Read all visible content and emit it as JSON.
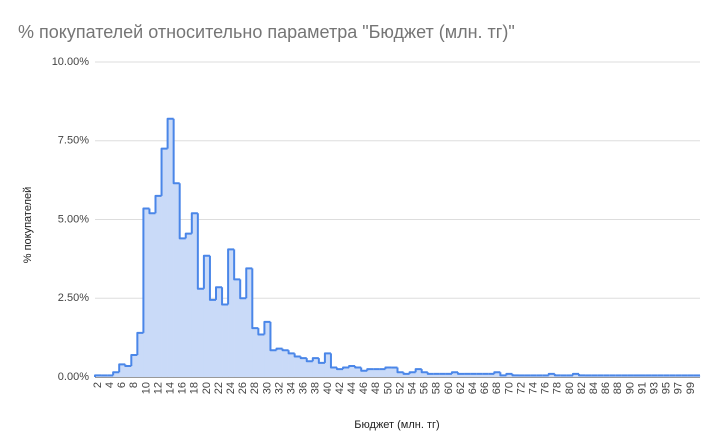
{
  "chart_data": {
    "type": "stepped-area",
    "title": "% покупателей относительно параметра \"Бюджет (млн. тг)\"",
    "x_label": "Бюджет (млн. тг)",
    "y_label": "% покупателей",
    "categories": [
      "2",
      null,
      "4",
      null,
      "6",
      null,
      "8",
      null,
      "10",
      null,
      "12",
      null,
      "14",
      null,
      "16",
      null,
      "18",
      null,
      "20",
      null,
      "22",
      null,
      "24",
      null,
      "26",
      null,
      "28",
      null,
      "30",
      null,
      "32",
      null,
      "34",
      null,
      "36",
      null,
      "38",
      null,
      "40",
      null,
      "42",
      null,
      "44",
      null,
      "46",
      null,
      "48",
      null,
      "50",
      null,
      "52",
      null,
      "54",
      null,
      "56",
      null,
      "58",
      null,
      "60",
      null,
      "62",
      null,
      "64",
      null,
      "66",
      null,
      "68",
      null,
      "70",
      null,
      "72",
      null,
      "74",
      null,
      "76",
      null,
      "78",
      null,
      "80",
      null,
      "82",
      null,
      "84",
      null,
      "86",
      null,
      "88",
      null,
      "90",
      null,
      "91",
      null,
      "93",
      null,
      "95",
      null,
      "97",
      null,
      "99",
      null
    ],
    "values": [
      0.05,
      0.05,
      0.05,
      0.15,
      0.4,
      0.35,
      0.7,
      1.4,
      5.35,
      5.2,
      5.75,
      7.25,
      8.2,
      6.15,
      4.4,
      4.55,
      5.2,
      2.8,
      3.85,
      2.45,
      2.85,
      2.3,
      4.05,
      3.1,
      2.5,
      3.45,
      1.55,
      1.35,
      1.75,
      0.85,
      0.9,
      0.85,
      0.75,
      0.65,
      0.6,
      0.5,
      0.6,
      0.45,
      0.75,
      0.3,
      0.25,
      0.3,
      0.35,
      0.3,
      0.2,
      0.25,
      0.25,
      0.25,
      0.3,
      0.3,
      0.15,
      0.1,
      0.15,
      0.25,
      0.15,
      0.1,
      0.1,
      0.1,
      0.1,
      0.15,
      0.1,
      0.1,
      0.1,
      0.1,
      0.1,
      0.1,
      0.15,
      0.05,
      0.1,
      0.05,
      0.05,
      0.05,
      0.05,
      0.05,
      0.05,
      0.1,
      0.05,
      0.05,
      0.05,
      0.1,
      0.05,
      0.05,
      0.05,
      0.05,
      0.05,
      0.05,
      0.05,
      0.05,
      0.05,
      0.05,
      0.05,
      0.05,
      0.05,
      0.05,
      0.05,
      0.05,
      0.05,
      0.05,
      0.05,
      0.05
    ],
    "color": "#4a86e8",
    "fill_color": "#c9daf8",
    "ylim": [
      0,
      10
    ],
    "yticks": [
      {
        "value": 0,
        "label": "0.00%"
      },
      {
        "value": 2.5,
        "label": "2.50%"
      },
      {
        "value": 5,
        "label": "5.00%"
      },
      {
        "value": 7.5,
        "label": "7.50%"
      },
      {
        "value": 10,
        "label": "10.00%"
      }
    ],
    "grid": true
  }
}
